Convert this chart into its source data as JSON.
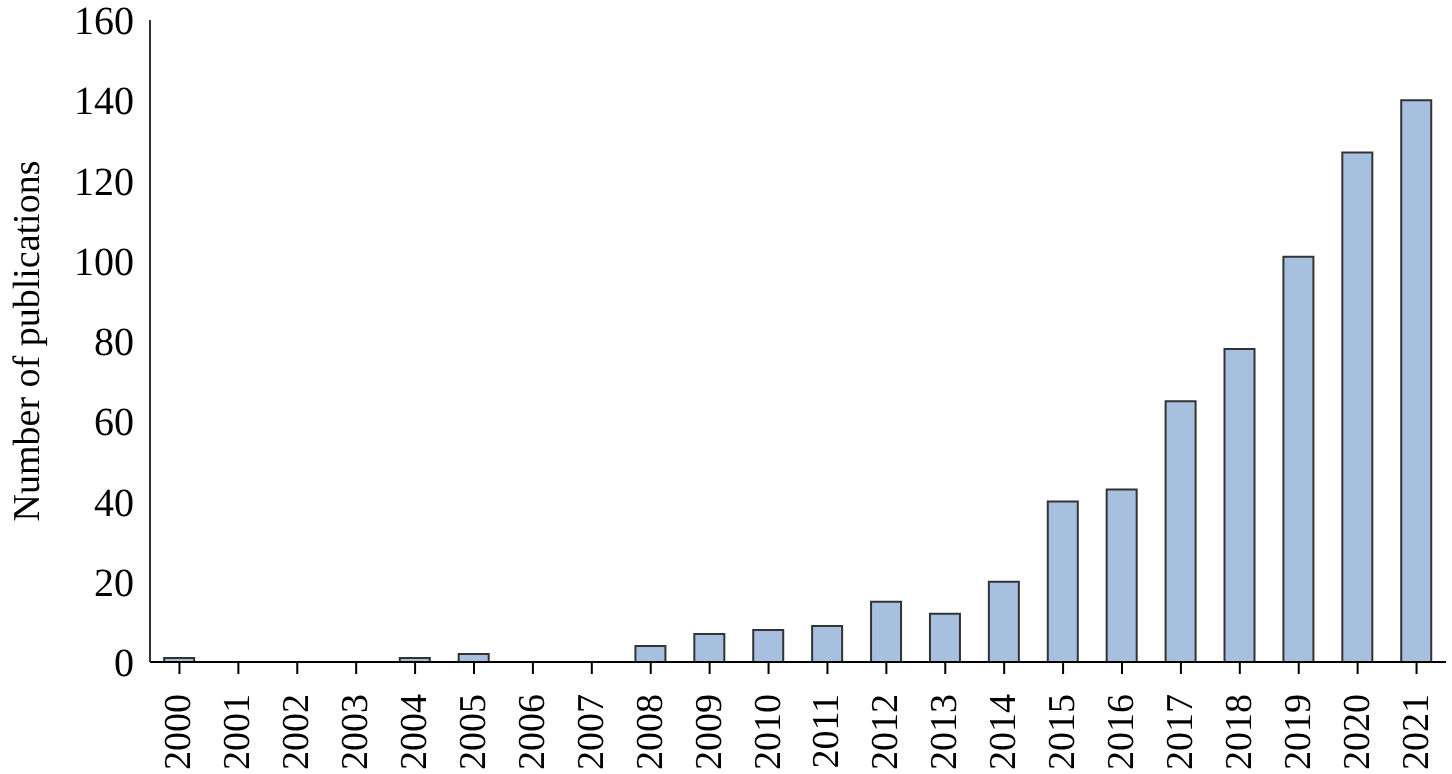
{
  "chart_data": {
    "type": "bar",
    "ylabel": "Number of publications",
    "categories": [
      "2000",
      "2001",
      "2002",
      "2003",
      "2004",
      "2005",
      "2006",
      "2007",
      "2008",
      "2009",
      "2010",
      "2011",
      "2012",
      "2013",
      "2014",
      "2015",
      "2016",
      "2017",
      "2018",
      "2019",
      "2020",
      "2021"
    ],
    "values": [
      1,
      0,
      0,
      0,
      1,
      2,
      0,
      0,
      4,
      7,
      8,
      9,
      15,
      12,
      20,
      40,
      43,
      65,
      78,
      101,
      127,
      140
    ],
    "color": "#a7c0e0",
    "ylim": [
      0,
      160
    ],
    "yticks": [
      0,
      20,
      40,
      60,
      80,
      100,
      120,
      140,
      160
    ],
    "grid": false,
    "legend": false
  }
}
